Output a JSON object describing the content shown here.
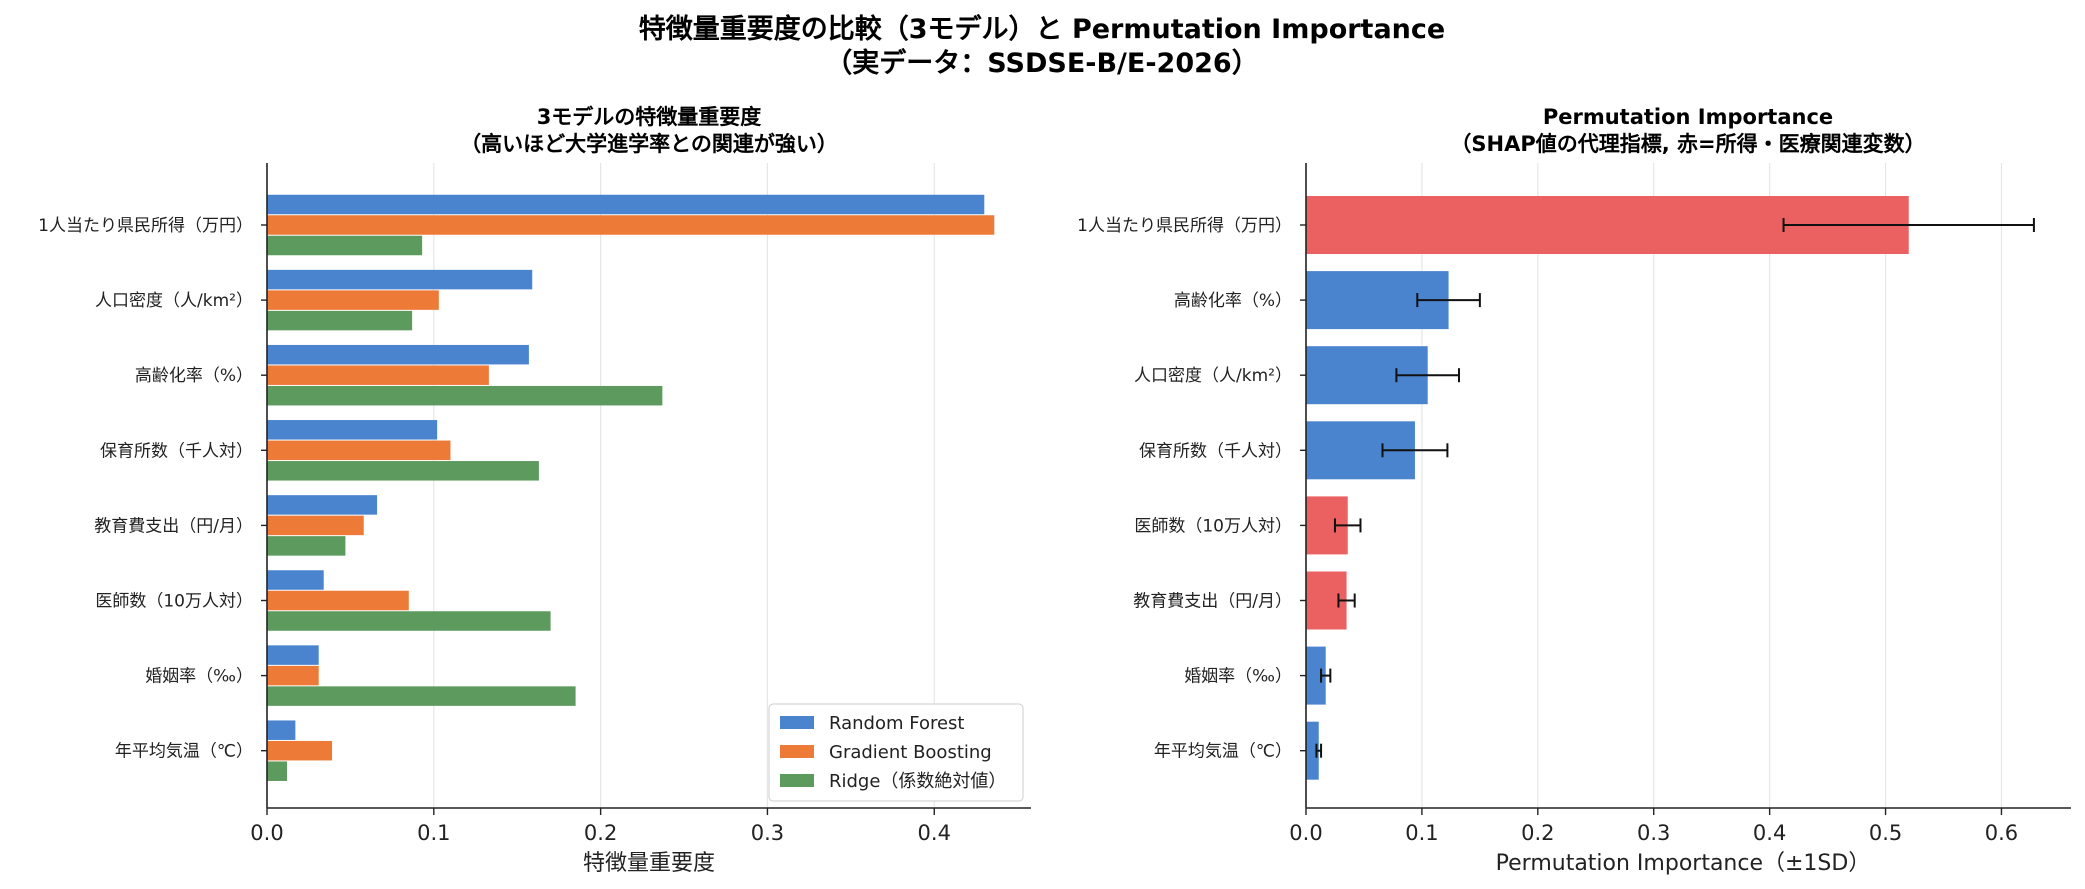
{
  "suptitle": [
    "特徴量重要度の比較（3モデル）と Permutation Importance",
    "（実データ：SSDSE-B/E-2026）"
  ],
  "colors": {
    "random_forest": "#4a84cf",
    "gradient_boosting": "#ee7a38",
    "ridge": "#5c9a5e",
    "income_medical": "#eb6060",
    "other": "#4a84cf",
    "error_bar": "#111111",
    "grid": "#e6e6e6"
  },
  "chart_data": [
    {
      "type": "bar",
      "orientation": "horizontal",
      "title": [
        "3モデルの特徴量重要度",
        "（高いほど大学進学率との関連が強い）"
      ],
      "xlabel": "特徴量重要度",
      "ylabel": "",
      "xlim": [
        0,
        0.458
      ],
      "xticks": [
        "0.0",
        "0.1",
        "0.2",
        "0.3",
        "0.4"
      ],
      "categories": [
        "1人当たり県民所得（万円）",
        "人口密度（人/km²）",
        "高齢化率（%）",
        "保育所数（千人対）",
        "教育費支出（円/月）",
        "医師数（10万人対）",
        "婚姻率（‰）",
        "年平均気温（℃）"
      ],
      "series": [
        {
          "name": "Random Forest",
          "color_key": "random_forest",
          "values": [
            0.43,
            0.159,
            0.157,
            0.102,
            0.066,
            0.034,
            0.031,
            0.017
          ]
        },
        {
          "name": "Gradient Boosting",
          "color_key": "gradient_boosting",
          "values": [
            0.436,
            0.103,
            0.133,
            0.11,
            0.058,
            0.085,
            0.031,
            0.039
          ]
        },
        {
          "name": "Ridge（係数絶対値）",
          "color_key": "ridge",
          "values": [
            0.093,
            0.087,
            0.237,
            0.163,
            0.047,
            0.17,
            0.185,
            0.012
          ]
        }
      ],
      "grid": true,
      "legend": "lower-right"
    },
    {
      "type": "bar",
      "orientation": "horizontal",
      "title": [
        "Permutation Importance",
        "（SHAP値の代理指標, 赤=所得・医療関連変数）"
      ],
      "xlabel": "Permutation Importance（±1SD）",
      "ylabel": "",
      "xlim": [
        0,
        0.66
      ],
      "xticks": [
        "0.0",
        "0.1",
        "0.2",
        "0.3",
        "0.4",
        "0.5",
        "0.6"
      ],
      "categories": [
        "1人当たり県民所得（万円）",
        "高齢化率（%）",
        "人口密度（人/km²）",
        "保育所数（千人対）",
        "医師数（10万人対）",
        "教育費支出（円/月）",
        "婚姻率（‰）",
        "年平均気温（℃）"
      ],
      "values": [
        0.52,
        0.123,
        0.105,
        0.094,
        0.036,
        0.035,
        0.017,
        0.011
      ],
      "errors": [
        0.108,
        0.027,
        0.027,
        0.028,
        0.011,
        0.007,
        0.004,
        0.002
      ],
      "highlight": [
        true,
        false,
        false,
        false,
        true,
        true,
        false,
        false
      ],
      "grid": true
    }
  ]
}
